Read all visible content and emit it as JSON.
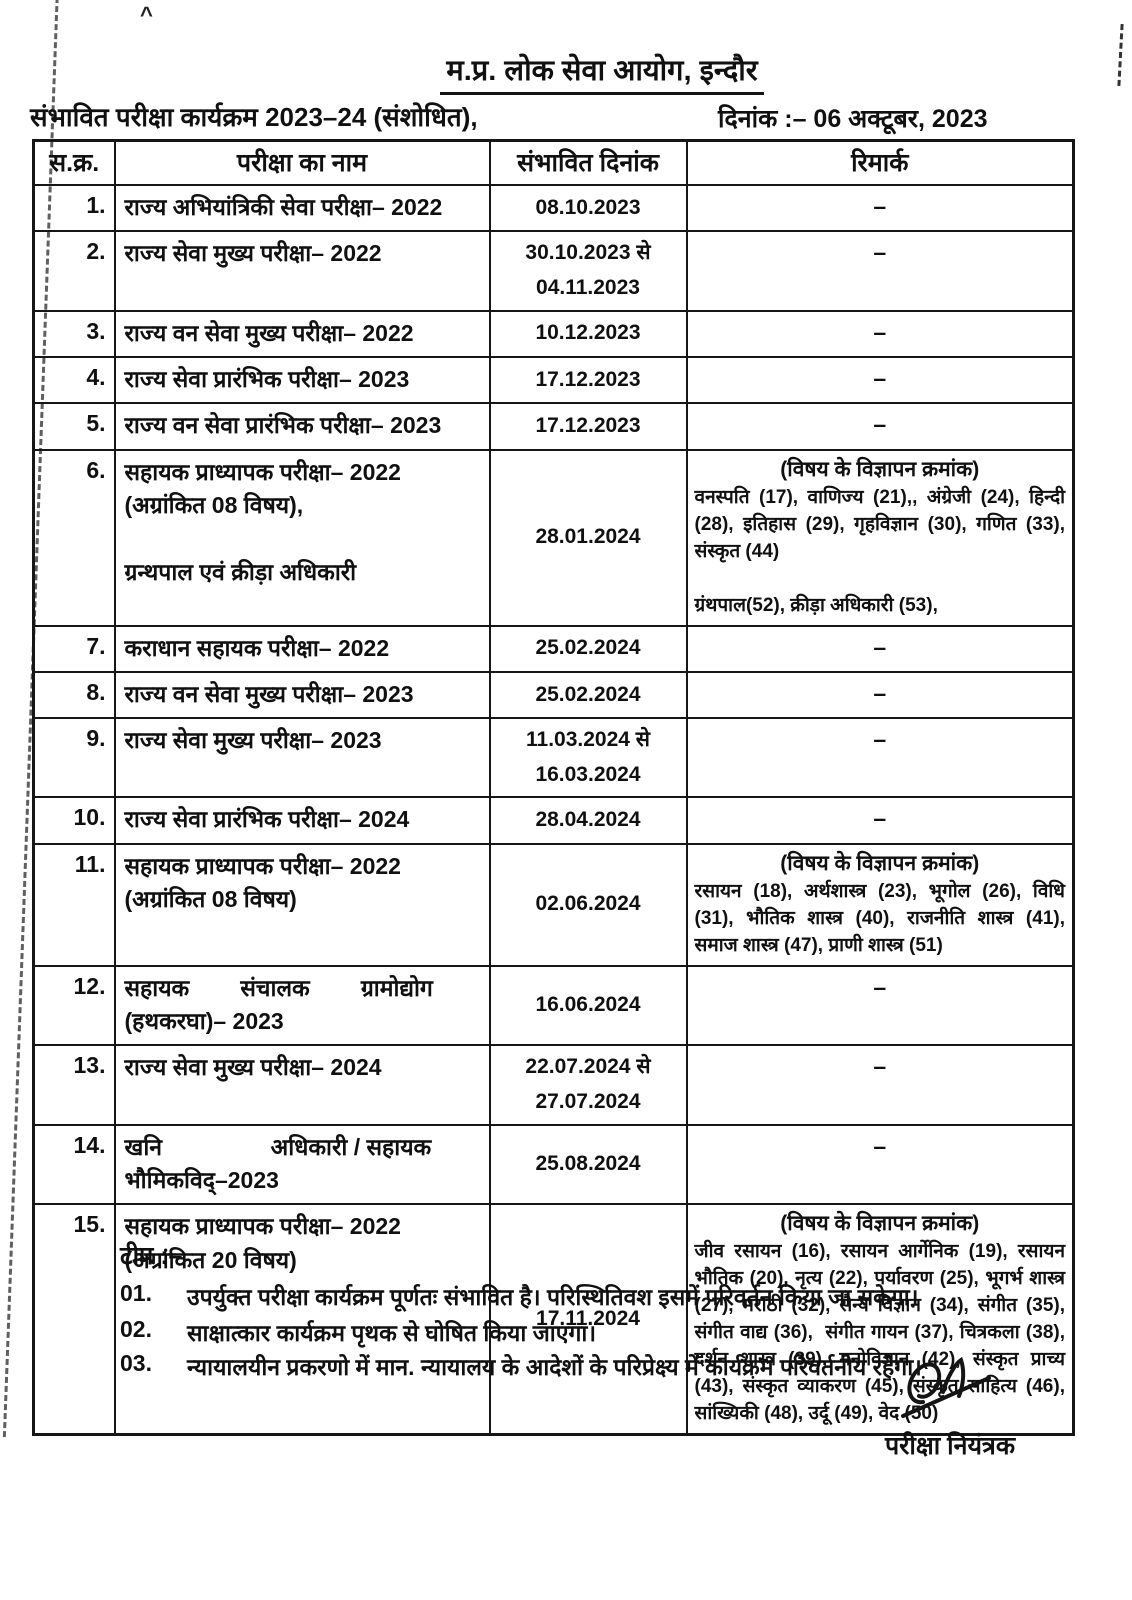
{
  "page": {
    "title": "म.प्र. लोक सेवा आयोग, इन्दौर",
    "subtitle": "संभावित परीक्षा कार्यक्रम 2023–24 (संशोधित),",
    "date_line": "दिनांक :– 06 अक्टूबर, 2023"
  },
  "table": {
    "headers": {
      "sno": "स.क्र.",
      "name": "परीक्षा का नाम",
      "date": "संभावित दिनांक",
      "remark": "रिमार्क"
    },
    "rows": [
      {
        "sno": "1.",
        "name": "राज्य अभियांत्रिकी सेवा परीक्षा– 2022",
        "date": "08.10.2023",
        "remark": "–"
      },
      {
        "sno": "2.",
        "name": "राज्य सेवा मुख्य परीक्षा– 2022",
        "date": "30.10.2023 से\n04.11.2023\n",
        "remark": "–"
      },
      {
        "sno": "3.",
        "name": "राज्य वन सेवा मुख्य परीक्षा– 2022",
        "date": "10.12.2023",
        "remark": "–"
      },
      {
        "sno": "4.",
        "name": "राज्य सेवा प्रारंभिक परीक्षा– 2023",
        "date": "17.12.2023",
        "remark": "–"
      },
      {
        "sno": "5.",
        "name": "राज्य वन सेवा प्रारंभिक परीक्षा– 2023",
        "date": "17.12.2023",
        "remark": "–"
      },
      {
        "sno": "6.",
        "name": "सहायक प्राध्यापक परीक्षा– 2022\n(अग्रांकित 08 विषय),\n\nग्रन्थपाल एवं क्रीड़ा अधिकारी",
        "date": "28.01.2024",
        "remark": {
          "heading": "(विषय के विज्ञापन क्रमांक)",
          "body": "वनस्पति (17), वाणिज्य (21),, अंग्रेजी (24), हिन्दी (28), इतिहास (29), गृहविज्ञान (30), गणित (33), संस्कृत (44)\n\nग्रंथपाल(52), क्रीड़ा अधिकारी (53),"
        }
      },
      {
        "sno": "7.",
        "name": "कराधान सहायक परीक्षा– 2022",
        "date": "25.02.2024",
        "remark": "–"
      },
      {
        "sno": "8.",
        "name": "राज्य वन सेवा मुख्य परीक्षा– 2023",
        "date": "25.02.2024",
        "remark": "–"
      },
      {
        "sno": "9.",
        "name": "राज्य सेवा मुख्य परीक्षा– 2023",
        "date": "11.03.2024 से\n16.03.2024\n",
        "remark": "–"
      },
      {
        "sno": "10.",
        "name": "राज्य सेवा प्रारंभिक परीक्षा– 2024",
        "date": "28.04.2024",
        "remark": "–"
      },
      {
        "sno": "11.",
        "name": "सहायक प्राध्यापक परीक्षा– 2022\n(अग्रांकित 08 विषय)",
        "date": "02.06.2024",
        "remark": {
          "heading": "(विषय के विज्ञापन क्रमांक)",
          "body": "रसायन (18), अर्थशास्त्र (23), भूगोल (26), विधि (31), भौतिक शास्त्र (40), राजनीति शास्त्र (41), समाज शास्त्र (47), प्राणी शास्त्र (51)"
        }
      },
      {
        "sno": "12.",
        "name": "सहायक        संचालक        ग्रामोद्योग\n(हथकरघा)– 2023",
        "date": "16.06.2024",
        "remark": "–"
      },
      {
        "sno": "13.",
        "name": "राज्य सेवा मुख्य परीक्षा– 2024",
        "date": "22.07.2024 से\n27.07.2024\n",
        "remark": "–"
      },
      {
        "sno": "14.",
        "name": "खनि                 अधिकारी / सहायक\nभौमिकविद्–2023",
        "date": "25.08.2024",
        "remark": "–"
      },
      {
        "sno": "15.",
        "name": "सहायक प्राध्यापक परीक्षा– 2022\n(अग्रांकित 20 विषय)",
        "date": "17.11.2024",
        "remark": {
          "heading": "(विषय के विज्ञापन क्रमांक)",
          "body": "जीव रसायन (16), रसायन आर्गेनिक (19), रसायन भौतिक (20), नृत्य (22), पर्यावरण (25), भूगर्भ शास्त्र (27), मराठी (32), सैन्य विज्ञान (34), संगीत (35), संगीत वाद्य (36),  संगीत गायन (37), चित्रकला (38), दर्शन शास्त्र (39), मनोविज्ञान (42), संस्कृत प्राच्य (43), संस्कृत व्याकरण (45), संस्कृत साहित्य (46), सांख्यिकी (48), उर्दू (49), वेद (50)"
        }
      }
    ]
  },
  "notes": {
    "label": "टीप :–",
    "items": [
      {
        "no": "01.",
        "text": "उपर्युक्त परीक्षा कार्यक्रम पूर्णतः संभावित है। परिस्थितिवश इसमें परिवर्तन किया जा सकेगा।"
      },
      {
        "no": "02.",
        "text": "साक्षात्कार कार्यक्रम पृथक से घोषित किया जाएगा।"
      },
      {
        "no": "03.",
        "text": "न्यायालयीन प्रकरणो में मान. न्यायालय के आदेशों के परिप्रेक्ष्य में कार्यक्रम परिवर्तनीय रहेगा।"
      }
    ]
  },
  "signature": {
    "label": "परीक्षा नियंत्रक"
  }
}
